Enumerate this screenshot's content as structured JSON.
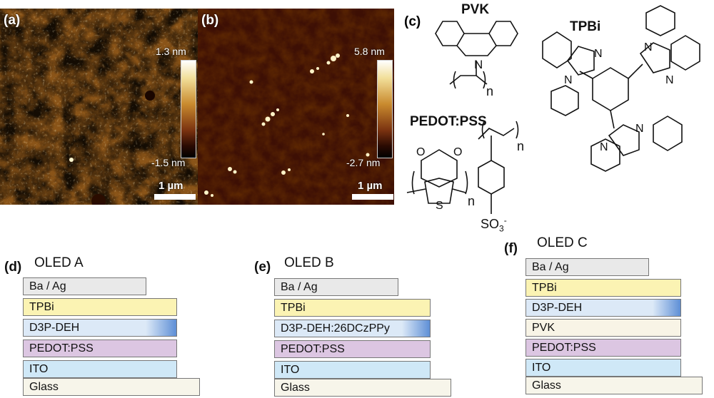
{
  "afm": {
    "a": {
      "label": "(a)",
      "scale_max": "1.3 nm",
      "scale_min": "-1.5 nm",
      "scale_bar": "1 µm"
    },
    "b": {
      "label": "(b)",
      "scale_max": "5.8 nm",
      "scale_min": "-2.7 nm",
      "scale_bar": "1 µm"
    }
  },
  "chemistry": {
    "label": "(c)",
    "pvk": {
      "name": "PVK",
      "n": "n",
      "n_atom": "N"
    },
    "tpbi": {
      "name": "TPBi",
      "atom_n": "N"
    },
    "pedot": {
      "name": "PEDOT:PSS",
      "s_atom": "S",
      "o_atom": "O",
      "n": "n",
      "so3": "SO",
      "so3_sub": "3",
      "so3_sup": "-"
    }
  },
  "devices": [
    {
      "label": "(d)",
      "title": "OLED A",
      "layers": [
        "Ba / Ag",
        "TPBi",
        "D3P-DEH",
        "PEDOT:PSS",
        "ITO",
        "Glass"
      ]
    },
    {
      "label": "(e)",
      "title": "OLED B",
      "layers": [
        "Ba / Ag",
        "TPBi",
        "D3P-DEH:26DCzPPy",
        "PEDOT:PSS",
        "ITO",
        "Glass"
      ]
    },
    {
      "label": "(f)",
      "title": "OLED C",
      "layers": [
        "Ba / Ag",
        "TPBi",
        "D3P-DEH",
        "PVK",
        "PEDOT:PSS",
        "ITO",
        "Glass"
      ]
    }
  ],
  "colors": {
    "ba_ag": "#e9e9e9",
    "tpbi": "#fbf3b3",
    "d3p": "#dce9f7",
    "pvk": "#f8f4e6",
    "pedot": "#dcc6e2",
    "ito": "#cfe8f7",
    "glass": "#f7f5ea"
  }
}
